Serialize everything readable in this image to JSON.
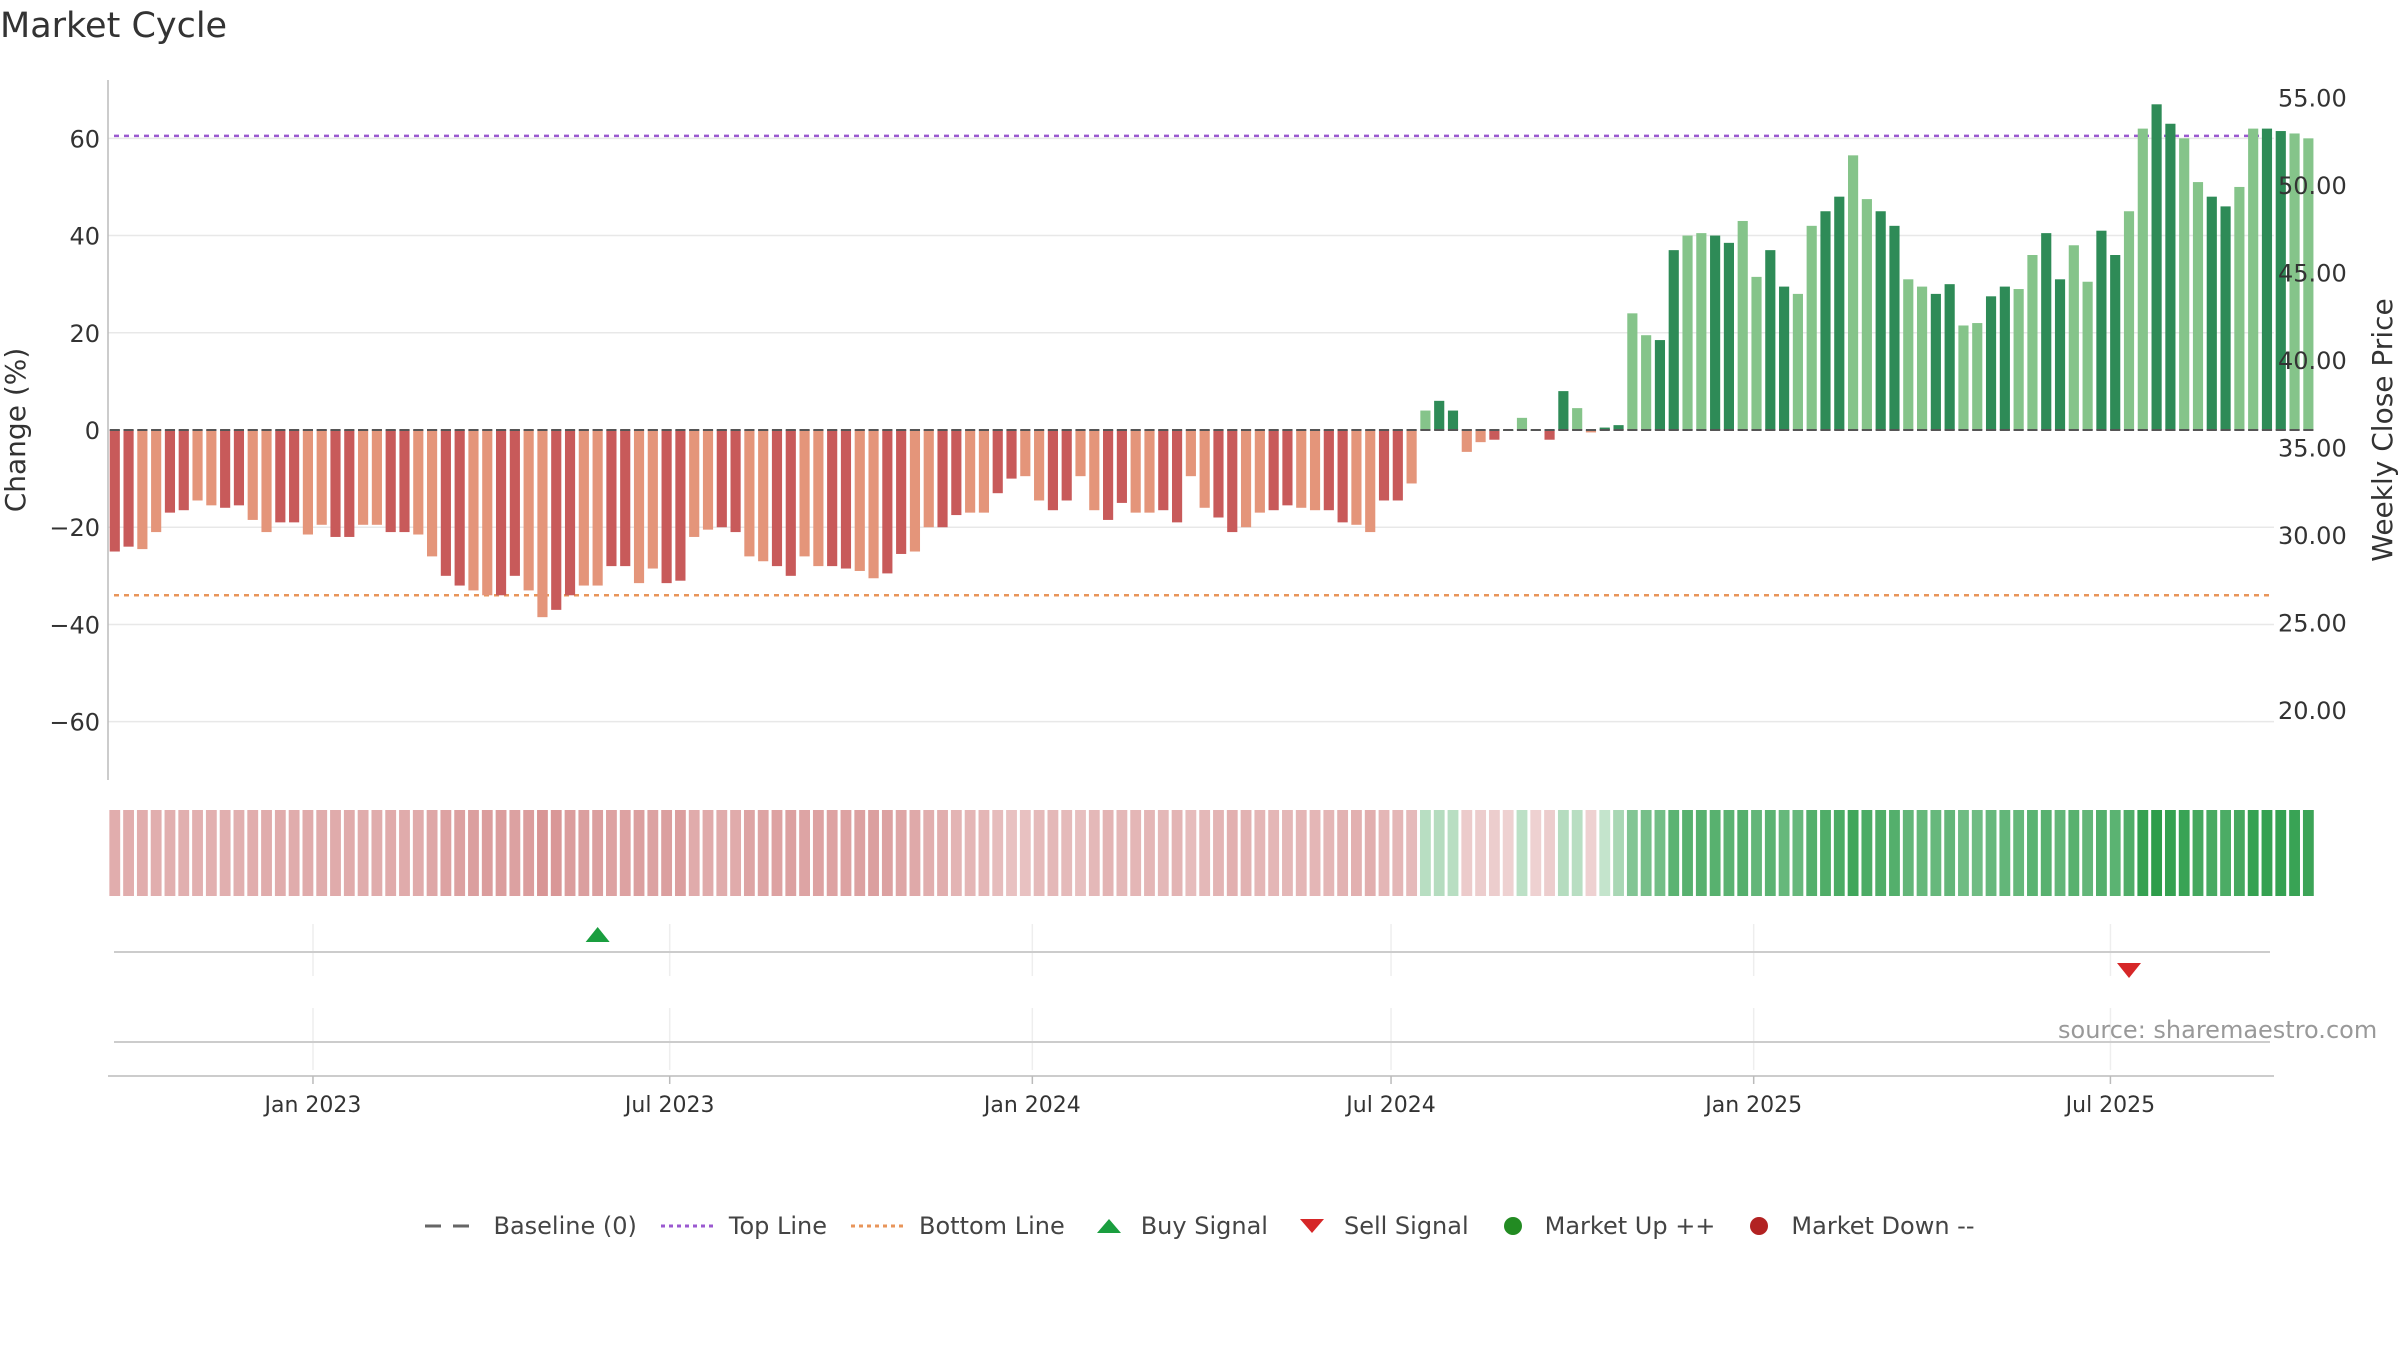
{
  "title": "Market Cycle",
  "source": "source: sharemaestro.com",
  "legend": [
    {
      "label": "Baseline (0)",
      "symbol": "dash-line-gray"
    },
    {
      "label": "Top Line",
      "symbol": "dotted-line-purple"
    },
    {
      "label": "Bottom Line",
      "symbol": "dotted-line-orange"
    },
    {
      "label": "Buy Signal",
      "symbol": "triangle-up-green"
    },
    {
      "label": "Sell Signal",
      "symbol": "triangle-down-red"
    },
    {
      "label": "Market Up ++",
      "symbol": "dot-green"
    },
    {
      "label": "Market Down --",
      "symbol": "dot-red"
    }
  ],
  "colors": {
    "down_dark": "#c85a5a",
    "down_light": "#e4957a",
    "up_dark": "#2e8b57",
    "up_light": "#85c48a",
    "top_line": "#9b59d0",
    "bottom_line": "#e8955a",
    "buy": "#1a9e3f",
    "sell": "#d62728",
    "market_up": "#228b22",
    "market_down": "#b22222",
    "baseline": "#555555"
  },
  "chart_data": {
    "type": "bar",
    "ylabel": "Change (%)",
    "y2label": "Weekly Close Price",
    "ylim": [
      -72,
      72
    ],
    "y2lim": [
      16.0,
      56.0
    ],
    "yticks": [
      -60,
      -40,
      -20,
      0,
      20,
      40,
      60
    ],
    "yticklabels": [
      "−60",
      "−40",
      "−20",
      "0",
      "20",
      "40",
      "60"
    ],
    "y2ticks": [
      "20.00",
      "25.00",
      "30.00",
      "35.00",
      "40.00",
      "45.00",
      "50.00",
      "55.00"
    ],
    "xlim": [
      "2022-09-19",
      "2025-09-22"
    ],
    "xticks": [
      {
        "date": "2023-01-01",
        "label": "Jan 2023"
      },
      {
        "date": "2023-07-01",
        "label": "Jul 2023"
      },
      {
        "date": "2024-01-01",
        "label": "Jan 2024"
      },
      {
        "date": "2024-07-01",
        "label": "Jul 2024"
      },
      {
        "date": "2025-01-01",
        "label": "Jan 2025"
      },
      {
        "date": "2025-07-01",
        "label": "Jul 2025"
      }
    ],
    "start_week": "2022-09-19",
    "top_line": 60.5,
    "bottom_line": -34,
    "values": [
      -25,
      -24,
      -24.5,
      -21,
      -17,
      -16.5,
      -14.5,
      -15.5,
      -16,
      -15.5,
      -18.5,
      -21,
      -19,
      -19,
      -21.5,
      -19.5,
      -22,
      -22,
      -19.5,
      -19.5,
      -21,
      -21,
      -21.5,
      -26,
      -30,
      -32,
      -33,
      -34,
      -34,
      -30,
      -33,
      -38.5,
      -37,
      -34,
      -32,
      -32,
      -28,
      -28,
      -31.5,
      -28.5,
      -31.5,
      -31,
      -22,
      -20.5,
      -20,
      -21,
      -26,
      -27,
      -28,
      -30,
      -26,
      -28,
      -28,
      -28.5,
      -29,
      -30.5,
      -29.5,
      -25.5,
      -25,
      -20,
      -20,
      -17.5,
      -17,
      -17,
      -13,
      -10,
      -9.5,
      -14.5,
      -16.5,
      -14.5,
      -9.5,
      -16.5,
      -18.5,
      -15,
      -17,
      -17,
      -16.5,
      -19,
      -9.5,
      -16,
      -18,
      -21,
      -20,
      -17,
      -16.5,
      -15.5,
      -16,
      -16.5,
      -16.5,
      -19,
      -19.5,
      -21,
      -14.5,
      -14.5,
      -11,
      4,
      6,
      4,
      -4.5,
      -2.5,
      -2,
      0,
      2.5,
      0,
      -2,
      8,
      4.5,
      -0.5,
      0.5,
      1,
      24,
      19.5,
      18.5,
      37,
      40,
      40.5,
      40,
      38.5,
      43,
      31.5,
      37,
      29.5,
      28,
      42,
      45,
      48,
      56.5,
      47.5,
      45,
      42,
      31,
      29.5,
      28,
      30,
      21.5,
      22,
      27.5,
      29.5,
      29,
      36,
      40.5,
      31,
      38,
      30.5,
      41,
      36,
      45,
      62,
      67,
      63,
      60,
      51,
      48,
      46,
      50,
      62,
      62,
      61.5,
      61,
      60
    ],
    "shading": [
      0.45,
      0.45,
      0.45,
      0.44,
      0.43,
      0.43,
      0.42,
      0.42,
      0.43,
      0.43,
      0.45,
      0.46,
      0.46,
      0.46,
      0.47,
      0.46,
      0.47,
      0.47,
      0.46,
      0.46,
      0.47,
      0.47,
      0.47,
      0.52,
      0.56,
      0.58,
      0.6,
      0.62,
      0.62,
      0.58,
      0.62,
      0.7,
      0.68,
      0.62,
      0.6,
      0.6,
      0.56,
      0.56,
      0.6,
      0.57,
      0.6,
      0.6,
      0.48,
      0.47,
      0.46,
      0.48,
      0.54,
      0.55,
      0.56,
      0.58,
      0.54,
      0.56,
      0.56,
      0.56,
      0.58,
      0.6,
      0.58,
      0.52,
      0.5,
      0.44,
      0.44,
      0.38,
      0.36,
      0.36,
      0.3,
      0.25,
      0.25,
      0.32,
      0.34,
      0.32,
      0.26,
      0.34,
      0.38,
      0.34,
      0.36,
      0.36,
      0.34,
      0.38,
      0.3,
      0.34,
      0.38,
      0.42,
      0.4,
      0.36,
      0.36,
      0.35,
      0.36,
      0.36,
      0.36,
      0.4,
      0.42,
      0.44,
      0.36,
      0.36,
      0.32,
      -0.12,
      -0.14,
      -0.12,
      0.14,
      0.12,
      0.12,
      0.08,
      -0.1,
      0.08,
      0.12,
      -0.14,
      -0.12,
      0.08,
      -0.06,
      -0.2,
      -0.4,
      -0.46,
      -0.48,
      -0.6,
      -0.62,
      -0.62,
      -0.62,
      -0.6,
      -0.64,
      -0.56,
      -0.6,
      -0.55,
      -0.54,
      -0.64,
      -0.66,
      -0.68,
      -0.74,
      -0.68,
      -0.66,
      -0.64,
      -0.56,
      -0.55,
      -0.54,
      -0.56,
      -0.5,
      -0.5,
      -0.54,
      -0.56,
      -0.55,
      -0.6,
      -0.62,
      -0.56,
      -0.62,
      -0.56,
      -0.64,
      -0.6,
      -0.66,
      -0.8,
      -0.84,
      -0.8,
      -0.78,
      -0.72,
      -0.7,
      -0.68,
      -0.72,
      -0.8,
      -0.8,
      -0.8,
      -0.78,
      -0.76
    ],
    "buy_signals": [
      "2023-05-22"
    ],
    "sell_signals": [
      "2025-07-07"
    ]
  }
}
